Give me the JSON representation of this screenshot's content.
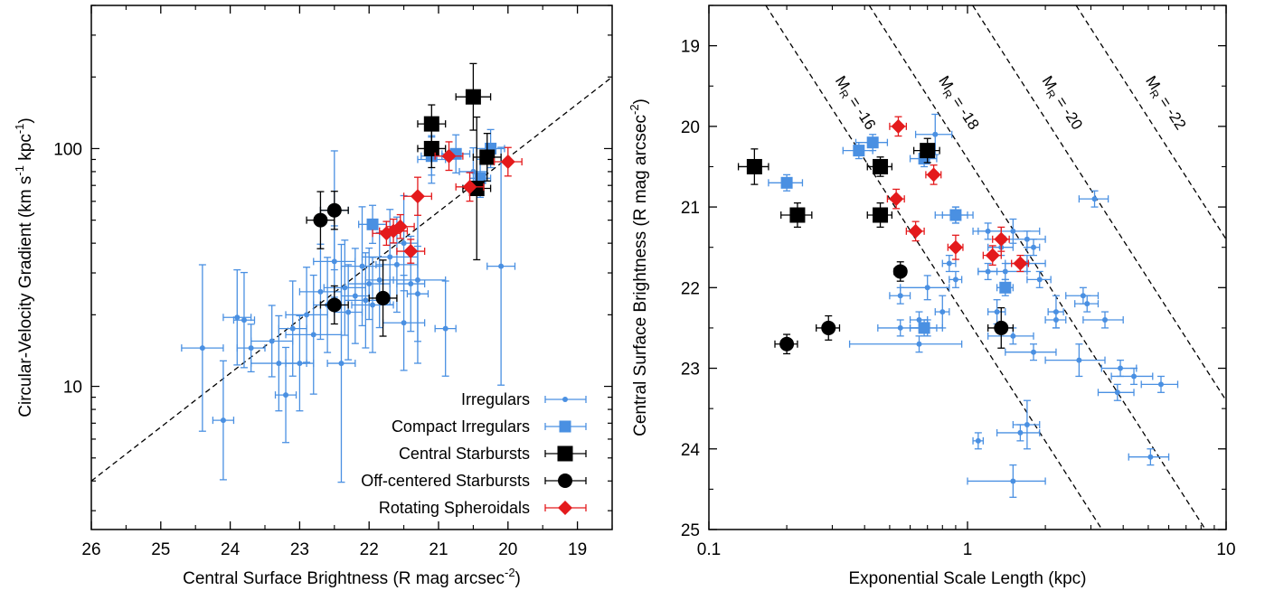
{
  "colors": {
    "irregulars": "#4a90e2",
    "compact": "#4a90e2",
    "central": "#000000",
    "offcenter": "#000000",
    "spheroidal": "#e41a1c"
  },
  "chart_data": [
    {
      "type": "scatter",
      "xlabel": "Central Surface Brightness (R mag arcsec",
      "xlabel_sup": "-2",
      "xlabel_end": ")",
      "ylabel": "Circular-Velocity Gradient (km s",
      "ylabel_sup1": "-1",
      "ylabel_mid": " kpc",
      "ylabel_sup2": "-1",
      "ylabel_end": ")",
      "xlim": [
        26,
        18.5
      ],
      "ylim": [
        2.5,
        400
      ],
      "yscale": "log",
      "xticks": [
        26,
        25,
        24,
        23,
        22,
        21,
        20,
        19
      ],
      "yticks": [
        10,
        100
      ],
      "fit_line": [
        [
          26,
          4.0
        ],
        [
          18.5,
          200
        ]
      ],
      "legend": {
        "position": "bottom-right",
        "entries": [
          "Irregulars",
          "Compact Irregulars",
          "Central Starbursts",
          "Off-centered Starbursts",
          "Rotating Spheroidals"
        ]
      },
      "series": [
        {
          "name": "Irregulars",
          "marker": "dot",
          "points": [
            [
              24.4,
              14.5,
              0.3,
              0.35
            ],
            [
              24.1,
              7.2,
              0.15,
              0.25
            ],
            [
              23.9,
              19.5,
              0.2,
              0.2
            ],
            [
              23.8,
              19,
              0.15,
              0.2
            ],
            [
              23.7,
              14.5,
              0.2,
              0.1
            ],
            [
              23.4,
              15.5,
              0.3,
              0.15
            ],
            [
              23.3,
              12.5,
              0.4,
              0.2
            ],
            [
              23.2,
              9.2,
              0.15,
              0.2
            ],
            [
              23.1,
              17.5,
              0.2,
              0.2
            ],
            [
              23.0,
              12.5,
              0.2,
              0.2
            ],
            [
              22.9,
              20,
              0.3,
              0.2
            ],
            [
              22.8,
              16.5,
              0.4,
              0.25
            ],
            [
              22.7,
              25,
              0.3,
              0.2
            ],
            [
              22.6,
              22,
              0.2,
              0.2
            ],
            [
              22.5,
              33.5,
              0.3,
              0.15
            ],
            [
              22.5,
              55,
              0.2,
              0.25
            ],
            [
              22.4,
              12.5,
              0.2,
              0.5
            ],
            [
              22.35,
              26,
              0.3,
              0.2
            ],
            [
              22.3,
              20.5,
              0.2,
              0.2
            ],
            [
              22.2,
              24,
              0.2,
              0.2
            ],
            [
              22.1,
              32,
              0.3,
              0.25
            ],
            [
              22.0,
              27,
              0.3,
              0.15
            ],
            [
              21.95,
              22,
              0.3,
              0.2
            ],
            [
              21.85,
              28,
              0.2,
              0.2
            ],
            [
              21.7,
              35,
              0.4,
              0.2
            ],
            [
              21.6,
              32.5,
              0.3,
              0.2
            ],
            [
              21.5,
              40,
              0.2,
              0.2
            ],
            [
              21.4,
              27,
              0.2,
              0.2
            ],
            [
              21.3,
              24.5,
              0.15,
              0.2
            ],
            [
              21.3,
              28,
              0.4,
              0.35
            ],
            [
              21.5,
              18.5,
              0.3,
              0.2
            ],
            [
              20.9,
              17.5,
              0.15,
              0.2
            ],
            [
              20.1,
              32,
              0.2,
              0.5
            ],
            [
              21.1,
              90,
              0.2,
              0.1
            ],
            [
              20.5,
              80,
              0.2,
              0.1
            ],
            [
              22.05,
              23,
              0.3,
              0.2
            ]
          ]
        },
        {
          "name": "Compact Irregulars",
          "marker": "square",
          "points": [
            [
              21.95,
              48,
              0.2,
              0.08
            ],
            [
              20.25,
              100,
              0.2,
              0.08
            ],
            [
              20.75,
              95,
              0.2,
              0.08
            ],
            [
              20.4,
              75,
              0.15,
              0.08
            ],
            [
              21.1,
              93,
              0.15,
              0.08
            ]
          ]
        },
        {
          "name": "Central Starbursts",
          "marker": "square",
          "points": [
            [
              21.1,
              127,
              0.2,
              0.08
            ],
            [
              21.1,
              100,
              0.2,
              0.08
            ],
            [
              20.5,
              165,
              0.25,
              0.14
            ],
            [
              20.3,
              92,
              0.2,
              0.1
            ],
            [
              20.45,
              68,
              0.2,
              0.3
            ]
          ]
        },
        {
          "name": "Off-centered Starbursts",
          "marker": "circle",
          "points": [
            [
              22.5,
              55,
              0.2,
              0.08
            ],
            [
              22.7,
              50,
              0.2,
              0.12
            ],
            [
              22.5,
              22,
              0.2,
              0.08
            ],
            [
              21.8,
              23.5,
              0.2,
              0.16
            ]
          ]
        },
        {
          "name": "Rotating Spheroidals",
          "marker": "diamond",
          "points": [
            [
              21.75,
              44,
              0.2,
              0.05
            ],
            [
              21.65,
              45,
              0.2,
              0.05
            ],
            [
              21.55,
              47,
              0.2,
              0.05
            ],
            [
              21.4,
              37,
              0.2,
              0.05
            ],
            [
              21.3,
              63,
              0.2,
              0.08
            ],
            [
              20.85,
              93,
              0.2,
              0.06
            ],
            [
              20.55,
              69,
              0.2,
              0.06
            ],
            [
              20.0,
              88,
              0.2,
              0.06
            ]
          ]
        }
      ]
    },
    {
      "type": "scatter",
      "xlabel": "Exponential Scale Length (kpc)",
      "ylabel": "Central Surface Brightness (R mag arcsec",
      "ylabel_sup": "-2",
      "ylabel_end": ")",
      "xlim": [
        0.1,
        10
      ],
      "xscale": "log",
      "ylim": [
        25,
        18.5
      ],
      "xticks": [
        0.1,
        1,
        10
      ],
      "xtick_labels": [
        "0.1",
        "1",
        "10"
      ],
      "yticks": [
        19,
        20,
        21,
        22,
        23,
        24,
        25
      ],
      "mag_lines": [
        {
          "label": "M",
          "sub": "R",
          "rest": " = -16",
          "mag": -16
        },
        {
          "label": "M",
          "sub": "R",
          "rest": " = -18",
          "mag": -18
        },
        {
          "label": "M",
          "sub": "R",
          "rest": " = -20",
          "mag": -20
        },
        {
          "label": "M",
          "sub": "R",
          "rest": " = -22",
          "mag": -22
        }
      ],
      "series": [
        {
          "name": "Irregulars",
          "marker": "dot",
          "points": [
            [
              0.75,
              20.1,
              0.12,
              0.25
            ],
            [
              0.9,
              21.1,
              0.15,
              0.1
            ],
            [
              1.2,
              21.3,
              0.15,
              0.1
            ],
            [
              1.5,
              21.3,
              0.4,
              0.15
            ],
            [
              1.7,
              21.4,
              0.3,
              0.1
            ],
            [
              1.35,
              21.5,
              0.15,
              0.1
            ],
            [
              1.8,
              21.5,
              0.1,
              0.1
            ],
            [
              1.7,
              21.7,
              0.3,
              0.1
            ],
            [
              1.4,
              21.8,
              0.3,
              0.1
            ],
            [
              1.9,
              21.9,
              0.2,
              0.1
            ],
            [
              0.85,
              21.7,
              0.05,
              0.1
            ],
            [
              0.9,
              21.9,
              0.05,
              0.1
            ],
            [
              0.7,
              22.0,
              0.15,
              0.15
            ],
            [
              0.8,
              22.3,
              0.05,
              0.2
            ],
            [
              0.55,
              22.1,
              0.05,
              0.1
            ],
            [
              0.55,
              22.5,
              0.1,
              0.1
            ],
            [
              0.65,
              22.4,
              0.05,
              0.1
            ],
            [
              0.65,
              22.7,
              0.3,
              0.1
            ],
            [
              0.7,
              22.5,
              0.1,
              0.1
            ],
            [
              1.3,
              22.3,
              0.1,
              0.15
            ],
            [
              1.5,
              22.6,
              0.3,
              0.1
            ],
            [
              1.8,
              22.8,
              0.4,
              0.1
            ],
            [
              2.2,
              22.3,
              0.15,
              0.2
            ],
            [
              2.2,
              22.4,
              0.2,
              0.1
            ],
            [
              2.8,
              22.1,
              0.4,
              0.1
            ],
            [
              2.9,
              22.2,
              0.3,
              0.1
            ],
            [
              3.4,
              22.4,
              0.6,
              0.1
            ],
            [
              2.7,
              22.9,
              0.7,
              0.2
            ],
            [
              3.9,
              23.0,
              0.6,
              0.1
            ],
            [
              4.4,
              23.1,
              0.8,
              0.1
            ],
            [
              3.8,
              23.3,
              0.6,
              0.1
            ],
            [
              5.6,
              23.2,
              0.9,
              0.1
            ],
            [
              5.1,
              24.1,
              0.9,
              0.1
            ],
            [
              1.7,
              23.7,
              0.2,
              0.3
            ],
            [
              1.6,
              23.8,
              0.3,
              0.1
            ],
            [
              1.1,
              23.9,
              0.05,
              0.1
            ],
            [
              1.5,
              24.4,
              0.5,
              0.2
            ],
            [
              3.1,
              20.9,
              0.4,
              0.1
            ],
            [
              1.2,
              21.8,
              0.1,
              0.1
            ]
          ]
        },
        {
          "name": "Compact Irregulars",
          "marker": "square",
          "points": [
            [
              0.2,
              20.7,
              0.03,
              0.1
            ],
            [
              0.38,
              20.3,
              0.05,
              0.1
            ],
            [
              0.43,
              20.2,
              0.06,
              0.1
            ],
            [
              0.68,
              20.4,
              0.08,
              0.1
            ],
            [
              0.9,
              21.1,
              0.1,
              0.1
            ],
            [
              1.4,
              22.0,
              0.1,
              0.1
            ],
            [
              0.68,
              22.5,
              0.08,
              0.1
            ]
          ]
        },
        {
          "name": "Central Starbursts",
          "marker": "square",
          "points": [
            [
              0.15,
              20.5,
              0.02,
              0.22
            ],
            [
              0.22,
              21.1,
              0.03,
              0.15
            ],
            [
              0.46,
              20.5,
              0.05,
              0.12
            ],
            [
              0.46,
              21.1,
              0.05,
              0.15
            ],
            [
              0.7,
              20.3,
              0.08,
              0.15
            ]
          ]
        },
        {
          "name": "Off-centered Starbursts",
          "marker": "circle",
          "points": [
            [
              0.2,
              22.7,
              0.02,
              0.12
            ],
            [
              0.29,
              22.5,
              0.03,
              0.15
            ],
            [
              0.55,
              21.8,
              0.03,
              0.12
            ],
            [
              1.35,
              22.5,
              0.15,
              0.25
            ]
          ]
        },
        {
          "name": "Rotating Spheroidals",
          "marker": "diamond",
          "points": [
            [
              0.54,
              20.0,
              0.04,
              0.12
            ],
            [
              0.74,
              20.6,
              0.05,
              0.12
            ],
            [
              0.53,
              20.9,
              0.04,
              0.12
            ],
            [
              0.63,
              21.3,
              0.05,
              0.12
            ],
            [
              0.9,
              21.5,
              0.06,
              0.15
            ],
            [
              1.35,
              21.4,
              0.1,
              0.15
            ],
            [
              1.25,
              21.6,
              0.1,
              0.12
            ],
            [
              1.6,
              21.7,
              0.12,
              0.1
            ]
          ]
        }
      ]
    }
  ]
}
